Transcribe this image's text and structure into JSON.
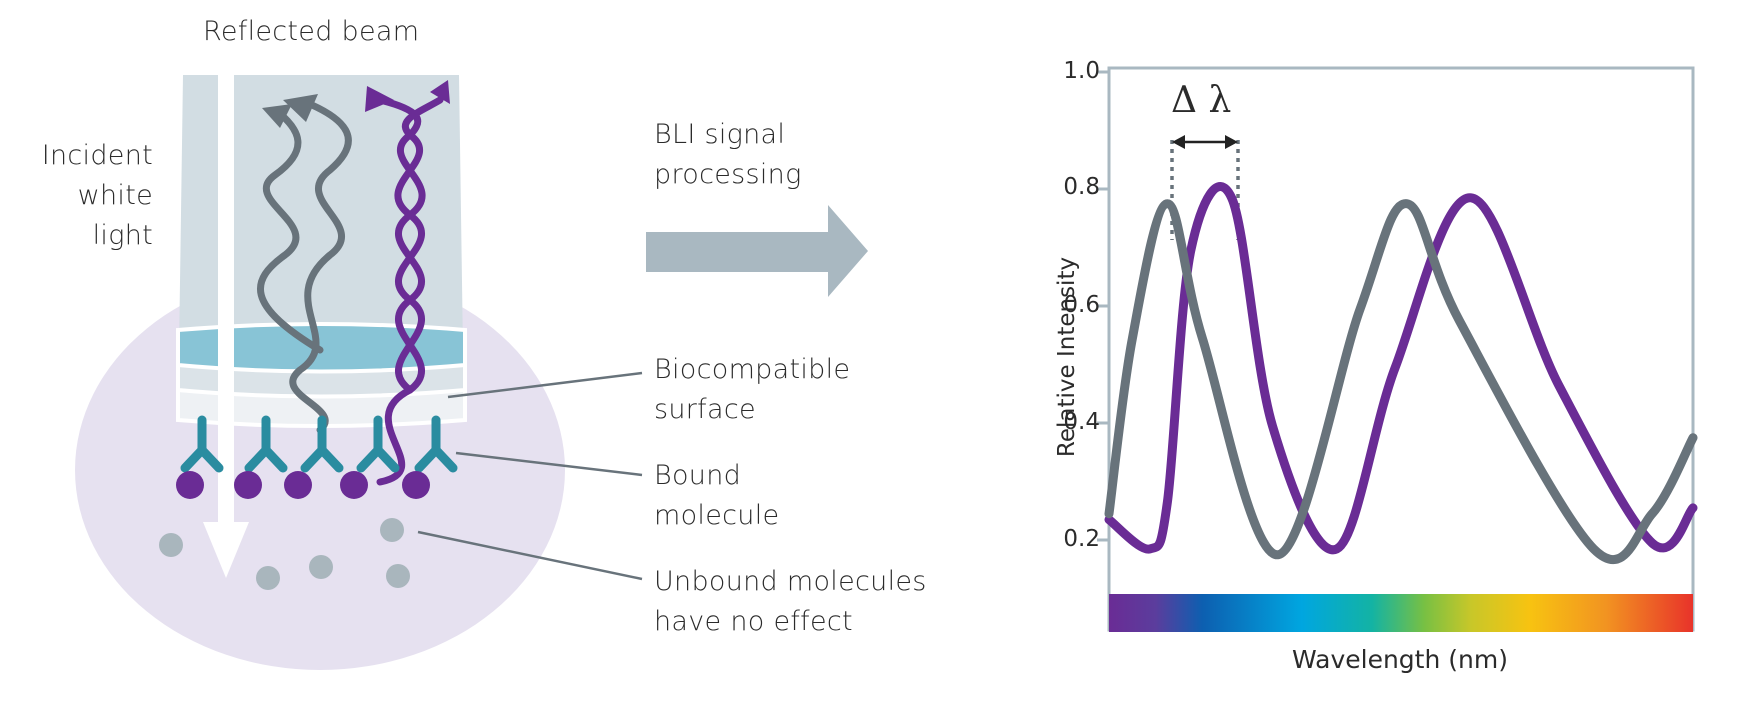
{
  "diagram": {
    "reflected_beam_label": "Reflected beam",
    "incident_light_label": [
      "Incident",
      "white",
      "light"
    ],
    "processing_label": [
      "BLI signal",
      "processing"
    ],
    "callouts": {
      "surface": [
        "Biocompatible",
        "surface"
      ],
      "bound": [
        "Bound",
        "molecule"
      ],
      "unbound": [
        "Unbound molecules",
        "have no effect"
      ]
    },
    "colors": {
      "probe": "#cfd9e0",
      "surface_layer": "#88c4d6",
      "liquid": "#e6e1f0",
      "gray_wave": "#68737b",
      "purple_wave": "#6a2c95",
      "antibody": "#2a8ca0",
      "arrow": "#a9b8c1"
    }
  },
  "chart_data": {
    "type": "line",
    "xlabel": "Wavelength (nm)",
    "ylabel": "Relative Intensity",
    "annotation": "Δ λ",
    "ylim": [
      0.1,
      1.0
    ],
    "yticks": [
      "1.0",
      "0.8",
      "0.6",
      "0.4",
      "0.2"
    ],
    "series": [
      {
        "color": "#68737b",
        "points": [
          [
            0.0,
            0.25
          ],
          [
            0.04,
            0.55
          ],
          [
            0.1,
            0.78
          ],
          [
            0.16,
            0.55
          ],
          [
            0.29,
            0.18
          ],
          [
            0.43,
            0.6
          ],
          [
            0.51,
            0.78
          ],
          [
            0.6,
            0.58
          ],
          [
            0.83,
            0.19
          ],
          [
            0.93,
            0.25
          ],
          [
            1.0,
            0.38
          ]
        ]
      },
      {
        "color": "#6a2c95",
        "points": [
          [
            0.0,
            0.24
          ],
          [
            0.07,
            0.19
          ],
          [
            0.1,
            0.27
          ],
          [
            0.14,
            0.7
          ],
          [
            0.21,
            0.79
          ],
          [
            0.28,
            0.4
          ],
          [
            0.39,
            0.19
          ],
          [
            0.49,
            0.5
          ],
          [
            0.62,
            0.79
          ],
          [
            0.77,
            0.47
          ],
          [
            0.93,
            0.2
          ],
          [
            1.0,
            0.26
          ]
        ]
      }
    ]
  }
}
